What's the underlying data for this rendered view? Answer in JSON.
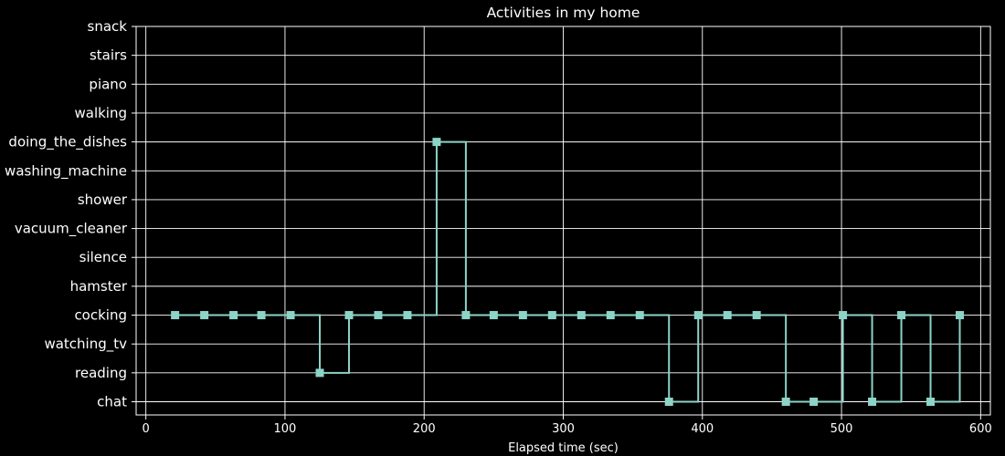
{
  "chart_data": {
    "type": "line",
    "step": "post",
    "title": "Activities in my home",
    "xlabel": "Elapsed time (sec)",
    "ylabel": "",
    "xlim": [
      -7,
      607
    ],
    "xticks": [
      "0",
      "100",
      "200",
      "300",
      "400",
      "500",
      "600"
    ],
    "categories": [
      "chat",
      "reading",
      "watching_tv",
      "cocking",
      "hamster",
      "silence",
      "vacuum_cleaner",
      "shower",
      "washing_machine",
      "doing_the_dishes",
      "walking",
      "piano",
      "stairs",
      "snack"
    ],
    "grid": true,
    "legend": "none",
    "colors": {
      "background": "#000000",
      "line": "#8dd3c7",
      "grid": "#ffffff",
      "text": "#ffffff"
    },
    "series": [
      {
        "marker": "square",
        "points": [
          {
            "x": 21,
            "y": "cocking"
          },
          {
            "x": 42,
            "y": "cocking"
          },
          {
            "x": 63,
            "y": "cocking"
          },
          {
            "x": 83,
            "y": "cocking"
          },
          {
            "x": 104,
            "y": "cocking"
          },
          {
            "x": 125,
            "y": "reading"
          },
          {
            "x": 146,
            "y": "cocking"
          },
          {
            "x": 167,
            "y": "cocking"
          },
          {
            "x": 188,
            "y": "cocking"
          },
          {
            "x": 209,
            "y": "doing_the_dishes"
          },
          {
            "x": 230,
            "y": "cocking"
          },
          {
            "x": 250,
            "y": "cocking"
          },
          {
            "x": 271,
            "y": "cocking"
          },
          {
            "x": 292,
            "y": "cocking"
          },
          {
            "x": 313,
            "y": "cocking"
          },
          {
            "x": 334,
            "y": "cocking"
          },
          {
            "x": 355,
            "y": "cocking"
          },
          {
            "x": 376,
            "y": "chat"
          },
          {
            "x": 397,
            "y": "cocking"
          },
          {
            "x": 418,
            "y": "cocking"
          },
          {
            "x": 439,
            "y": "cocking"
          },
          {
            "x": 460,
            "y": "chat"
          },
          {
            "x": 480,
            "y": "chat"
          },
          {
            "x": 501,
            "y": "cocking"
          },
          {
            "x": 522,
            "y": "chat"
          },
          {
            "x": 543,
            "y": "cocking"
          },
          {
            "x": 564,
            "y": "chat"
          },
          {
            "x": 585,
            "y": "cocking"
          }
        ]
      }
    ]
  }
}
